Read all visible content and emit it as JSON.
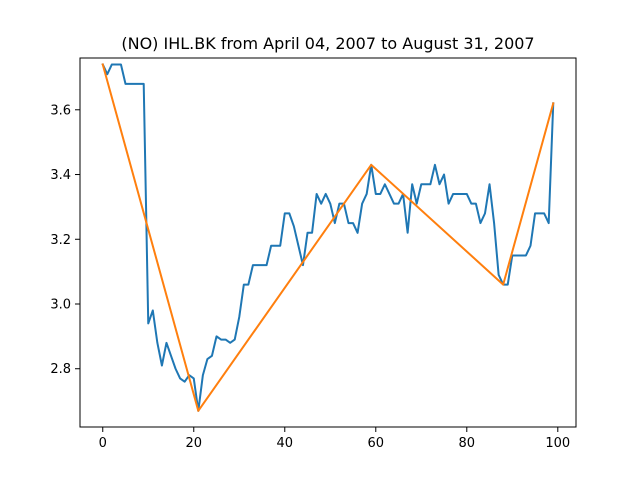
{
  "chart_data": {
    "type": "line",
    "title": "(NO) IHL.BK from April 04, 2007 to August 31, 2007",
    "xlabel": "",
    "ylabel": "",
    "xlim": [
      -5,
      104
    ],
    "ylim": [
      2.62,
      3.76
    ],
    "x_ticks": [
      0,
      20,
      40,
      60,
      80,
      100
    ],
    "y_ticks": [
      2.8,
      3.0,
      3.2,
      3.4,
      3.6
    ],
    "x_tick_labels": [
      "0",
      "20",
      "40",
      "60",
      "80",
      "100"
    ],
    "y_tick_labels": [
      "2.8",
      "3.0",
      "3.2",
      "3.4",
      "3.6"
    ],
    "grid": false,
    "series": [
      {
        "color": "#1f77b4",
        "x": [
          0,
          1,
          2,
          3,
          4,
          5,
          6,
          7,
          8,
          9,
          10,
          11,
          12,
          13,
          14,
          15,
          16,
          17,
          18,
          19,
          20,
          21,
          22,
          23,
          24,
          25,
          26,
          27,
          28,
          29,
          30,
          31,
          32,
          33,
          34,
          35,
          36,
          37,
          38,
          39,
          40,
          41,
          42,
          43,
          44,
          45,
          46,
          47,
          48,
          49,
          50,
          51,
          52,
          53,
          54,
          55,
          56,
          57,
          58,
          59,
          60,
          61,
          62,
          63,
          64,
          65,
          66,
          67,
          68,
          69,
          70,
          71,
          72,
          73,
          74,
          75,
          76,
          77,
          78,
          79,
          80,
          81,
          82,
          83,
          84,
          85,
          86,
          87,
          88,
          89,
          90,
          91,
          92,
          93,
          94,
          95,
          96,
          97,
          98,
          99
        ],
        "values": [
          3.74,
          3.71,
          3.74,
          3.74,
          3.74,
          3.68,
          3.68,
          3.68,
          3.68,
          3.68,
          2.94,
          2.98,
          2.88,
          2.81,
          2.88,
          2.84,
          2.8,
          2.77,
          2.76,
          2.78,
          2.77,
          2.67,
          2.78,
          2.83,
          2.84,
          2.9,
          2.89,
          2.89,
          2.88,
          2.89,
          2.96,
          3.06,
          3.06,
          3.12,
          3.12,
          3.12,
          3.12,
          3.18,
          3.18,
          3.18,
          3.28,
          3.28,
          3.24,
          3.18,
          3.12,
          3.22,
          3.22,
          3.34,
          3.31,
          3.34,
          3.31,
          3.25,
          3.31,
          3.31,
          3.25,
          3.25,
          3.22,
          3.31,
          3.34,
          3.43,
          3.34,
          3.34,
          3.37,
          3.34,
          3.31,
          3.31,
          3.34,
          3.22,
          3.37,
          3.31,
          3.37,
          3.37,
          3.37,
          3.43,
          3.37,
          3.4,
          3.31,
          3.34,
          3.34,
          3.34,
          3.34,
          3.31,
          3.31,
          3.25,
          3.28,
          3.37,
          3.25,
          3.09,
          3.06,
          3.06,
          3.15,
          3.15,
          3.15,
          3.15,
          3.18,
          3.28,
          3.28,
          3.28,
          3.25,
          3.62
        ]
      },
      {
        "color": "#ff7f0e",
        "x": [
          0,
          21,
          59,
          88,
          99
        ],
        "values": [
          3.74,
          2.67,
          3.43,
          3.06,
          3.62
        ]
      }
    ]
  }
}
